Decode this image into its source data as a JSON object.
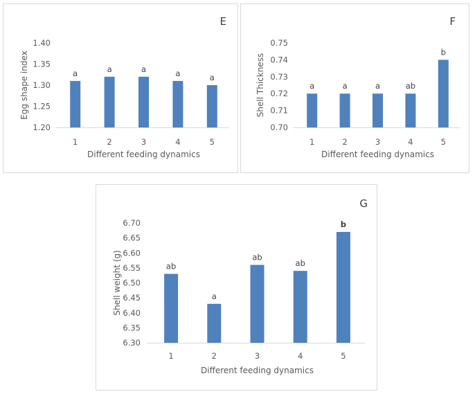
{
  "bar_color": "#4f81bd",
  "axis_color": "#d9d9d9",
  "chart_data": [
    {
      "type": "bar",
      "panel": "E",
      "title": "",
      "xlabel": "Different feeding dynamics",
      "ylabel": "Egg shape index",
      "categories": [
        "1",
        "2",
        "3",
        "4",
        "5"
      ],
      "values": [
        1.31,
        1.32,
        1.32,
        1.31,
        1.3
      ],
      "labels": [
        "a",
        "a",
        "a",
        "a",
        "a"
      ],
      "ylim": [
        1.2,
        1.4
      ],
      "yticks": [
        "1.20",
        "1.25",
        "1.30",
        "1.35",
        "1.40"
      ],
      "grid": false
    },
    {
      "type": "bar",
      "panel": "F",
      "title": "",
      "xlabel": "Different feeding dynamics",
      "ylabel": "Shell Thickness",
      "categories": [
        "1",
        "2",
        "3",
        "4",
        "5"
      ],
      "values": [
        0.72,
        0.72,
        0.72,
        0.72,
        0.74
      ],
      "labels": [
        "a",
        "a",
        "a",
        "ab",
        "b"
      ],
      "ylim": [
        0.7,
        0.75
      ],
      "yticks": [
        "0.70",
        "0.71",
        "0.72",
        "0.73",
        "0.74",
        "0.75"
      ],
      "grid": false
    },
    {
      "type": "bar",
      "panel": "G",
      "title": "",
      "xlabel": "Different feeding dynamics",
      "ylabel": "Shell weight (g)",
      "categories": [
        "1",
        "2",
        "3",
        "4",
        "5"
      ],
      "values": [
        6.53,
        6.43,
        6.56,
        6.54,
        6.67
      ],
      "labels": [
        "ab",
        "a",
        "ab",
        "ab",
        "b"
      ],
      "ylim": [
        6.3,
        6.7
      ],
      "yticks": [
        "6.30",
        "6.35",
        "6.40",
        "6.45",
        "6.50",
        "6.55",
        "6.60",
        "6.65",
        "6.70"
      ],
      "grid": false
    }
  ]
}
